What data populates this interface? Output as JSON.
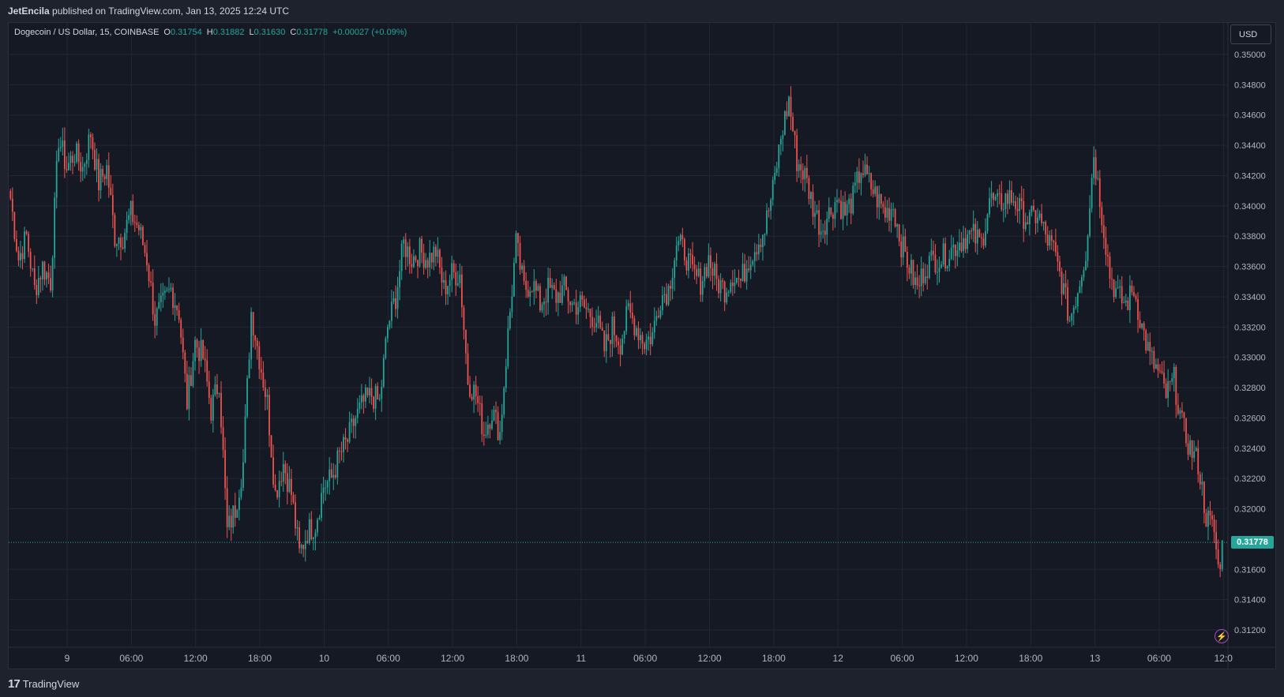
{
  "header": {
    "author": "JetEncila",
    "published_text": "published on TradingView.com, Jan 13, 2025 12:24 UTC"
  },
  "legend": {
    "symbol": "Dogecoin / US Dollar, 15, COINBASE",
    "o_label": "O",
    "o_value": "0.31754",
    "h_label": "H",
    "h_value": "0.31882",
    "l_label": "L",
    "l_value": "0.31630",
    "c_label": "C",
    "c_value": "0.31778",
    "change": "+0.00027 (+0.09%)"
  },
  "currency": "USD",
  "last_price_label": "0.31778",
  "footer": {
    "brand": "TradingView"
  },
  "colors": {
    "up": "#26a69a",
    "down": "#ef5350",
    "background": "#151924",
    "grid": "#232733"
  },
  "icons": [
    "tradingview-logo-icon",
    "lightning-icon"
  ],
  "chart_data": {
    "type": "candlestick",
    "interval": "15",
    "ylim": [
      0.311,
      0.3505
    ],
    "y_ticks": [
      "0.35000",
      "0.34800",
      "0.34600",
      "0.34400",
      "0.34200",
      "0.34000",
      "0.33800",
      "0.33600",
      "0.33400",
      "0.33200",
      "0.33000",
      "0.32800",
      "0.32600",
      "0.32400",
      "0.32200",
      "0.32000",
      "0.31600",
      "0.31400",
      "0.31200"
    ],
    "x_ticks": [
      "9",
      "06:00",
      "12:00",
      "18:00",
      "10",
      "06:00",
      "12:00",
      "18:00",
      "11",
      "06:00",
      "12:00",
      "18:00",
      "12",
      "06:00",
      "12:00",
      "18:00",
      "13",
      "06:00",
      "12:0"
    ],
    "last_price": 0.31778,
    "close_path": [
      [
        0,
        0.3405
      ],
      [
        4,
        0.3365
      ],
      [
        8,
        0.338
      ],
      [
        12,
        0.3345
      ],
      [
        16,
        0.336
      ],
      [
        20,
        0.335
      ],
      [
        24,
        0.3445
      ],
      [
        28,
        0.3425
      ],
      [
        32,
        0.3435
      ],
      [
        36,
        0.3425
      ],
      [
        40,
        0.3448
      ],
      [
        44,
        0.3415
      ],
      [
        48,
        0.3425
      ],
      [
        52,
        0.338
      ],
      [
        56,
        0.338
      ],
      [
        60,
        0.3395
      ],
      [
        64,
        0.3385
      ],
      [
        68,
        0.3365
      ],
      [
        72,
        0.3325
      ],
      [
        76,
        0.3335
      ],
      [
        80,
        0.3345
      ],
      [
        84,
        0.333
      ],
      [
        88,
        0.327
      ],
      [
        92,
        0.331
      ],
      [
        96,
        0.33
      ],
      [
        100,
        0.3265
      ],
      [
        104,
        0.3285
      ],
      [
        108,
        0.3185
      ],
      [
        112,
        0.32
      ],
      [
        116,
        0.323
      ],
      [
        120,
        0.333
      ],
      [
        124,
        0.33
      ],
      [
        128,
        0.327
      ],
      [
        132,
        0.321
      ],
      [
        136,
        0.323
      ],
      [
        140,
        0.321
      ],
      [
        144,
        0.317
      ],
      [
        148,
        0.3185
      ],
      [
        152,
        0.319
      ],
      [
        156,
        0.3215
      ],
      [
        160,
        0.322
      ],
      [
        164,
        0.3235
      ],
      [
        168,
        0.3245
      ],
      [
        172,
        0.326
      ],
      [
        176,
        0.327
      ],
      [
        180,
        0.3275
      ],
      [
        184,
        0.327
      ],
      [
        188,
        0.332
      ],
      [
        192,
        0.334
      ],
      [
        196,
        0.3375
      ],
      [
        200,
        0.3365
      ],
      [
        204,
        0.337
      ],
      [
        208,
        0.3365
      ],
      [
        212,
        0.337
      ],
      [
        216,
        0.3345
      ],
      [
        220,
        0.3355
      ],
      [
        224,
        0.3355
      ],
      [
        228,
        0.3285
      ],
      [
        232,
        0.3275
      ],
      [
        236,
        0.325
      ],
      [
        240,
        0.3265
      ],
      [
        244,
        0.325
      ],
      [
        248,
        0.3315
      ],
      [
        252,
        0.3375
      ],
      [
        256,
        0.3345
      ],
      [
        260,
        0.335
      ],
      [
        264,
        0.3335
      ],
      [
        268,
        0.3345
      ],
      [
        272,
        0.334
      ],
      [
        276,
        0.3345
      ],
      [
        280,
        0.3335
      ],
      [
        284,
        0.3335
      ],
      [
        288,
        0.333
      ],
      [
        292,
        0.3325
      ],
      [
        296,
        0.3305
      ],
      [
        300,
        0.332
      ],
      [
        304,
        0.331
      ],
      [
        308,
        0.333
      ],
      [
        312,
        0.332
      ],
      [
        316,
        0.331
      ],
      [
        320,
        0.3315
      ],
      [
        324,
        0.334
      ],
      [
        328,
        0.3345
      ],
      [
        332,
        0.3375
      ],
      [
        336,
        0.337
      ],
      [
        340,
        0.3355
      ],
      [
        344,
        0.335
      ],
      [
        348,
        0.3365
      ],
      [
        352,
        0.335
      ],
      [
        356,
        0.3345
      ],
      [
        360,
        0.3355
      ],
      [
        364,
        0.335
      ],
      [
        368,
        0.3365
      ],
      [
        372,
        0.3375
      ],
      [
        376,
        0.3385
      ],
      [
        380,
        0.341
      ],
      [
        384,
        0.3445
      ],
      [
        388,
        0.347
      ],
      [
        392,
        0.343
      ],
      [
        396,
        0.342
      ],
      [
        400,
        0.34
      ],
      [
        404,
        0.3385
      ],
      [
        408,
        0.3395
      ],
      [
        412,
        0.3405
      ],
      [
        416,
        0.3395
      ],
      [
        420,
        0.3405
      ],
      [
        424,
        0.3425
      ],
      [
        428,
        0.3415
      ],
      [
        432,
        0.3405
      ],
      [
        436,
        0.3395
      ],
      [
        440,
        0.34
      ],
      [
        444,
        0.3375
      ],
      [
        448,
        0.336
      ],
      [
        452,
        0.3345
      ],
      [
        456,
        0.336
      ],
      [
        460,
        0.3365
      ],
      [
        464,
        0.3365
      ],
      [
        468,
        0.337
      ],
      [
        472,
        0.3375
      ],
      [
        476,
        0.338
      ],
      [
        480,
        0.338
      ],
      [
        484,
        0.3375
      ],
      [
        488,
        0.3405
      ],
      [
        492,
        0.34
      ],
      [
        496,
        0.3405
      ],
      [
        500,
        0.3405
      ],
      [
        504,
        0.3395
      ],
      [
        508,
        0.339
      ],
      [
        512,
        0.3395
      ],
      [
        516,
        0.338
      ],
      [
        520,
        0.337
      ],
      [
        524,
        0.335
      ],
      [
        528,
        0.3325
      ],
      [
        532,
        0.3345
      ],
      [
        536,
        0.337
      ],
      [
        540,
        0.3435
      ],
      [
        544,
        0.3395
      ],
      [
        548,
        0.3355
      ],
      [
        552,
        0.334
      ],
      [
        556,
        0.3335
      ],
      [
        560,
        0.3345
      ],
      [
        564,
        0.332
      ],
      [
        568,
        0.33
      ],
      [
        572,
        0.329
      ],
      [
        576,
        0.3275
      ],
      [
        580,
        0.3285
      ],
      [
        584,
        0.3255
      ],
      [
        588,
        0.324
      ],
      [
        592,
        0.323
      ],
      [
        596,
        0.3195
      ],
      [
        600,
        0.3185
      ],
      [
        602,
        0.316
      ],
      [
        604,
        0.3175
      ]
    ]
  }
}
